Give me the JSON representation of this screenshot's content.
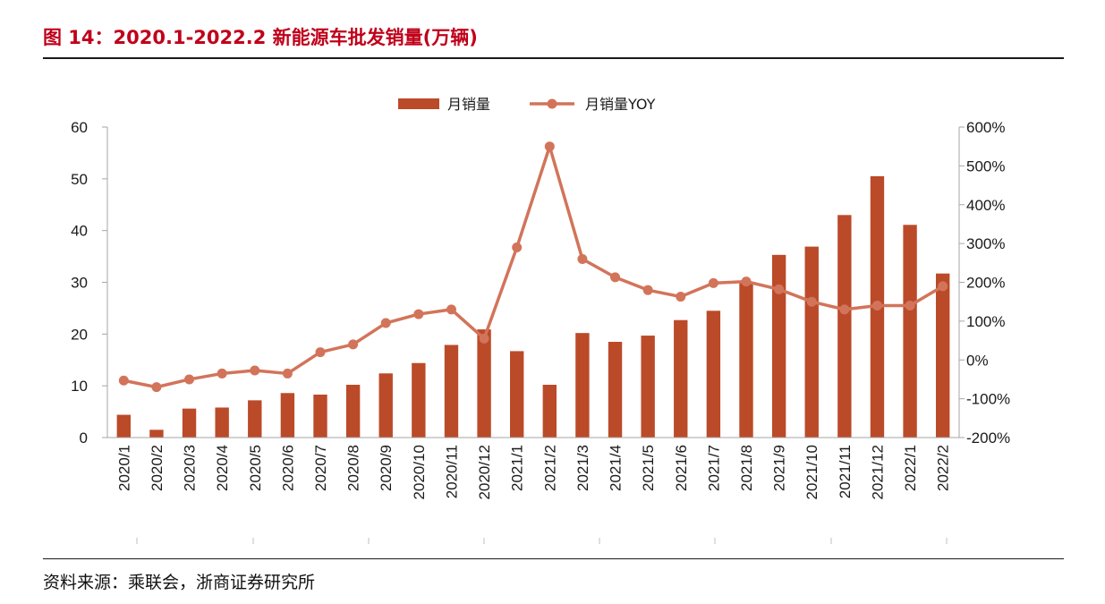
{
  "figure": {
    "title": "图 14：2020.1-2022.2 新能源车批发销量(万辆)",
    "source": "资料来源：乘联会，浙商证券研究所"
  },
  "chart_data": {
    "type": "bar",
    "title": "",
    "xlabel": "",
    "ylabel": "",
    "categories": [
      "2020/1",
      "2020/2",
      "2020/3",
      "2020/4",
      "2020/5",
      "2020/6",
      "2020/7",
      "2020/8",
      "2020/9",
      "2020/10",
      "2020/11",
      "2020/12",
      "2021/1",
      "2021/2",
      "2021/3",
      "2021/4",
      "2021/5",
      "2021/6",
      "2021/7",
      "2021/8",
      "2021/9",
      "2021/10",
      "2021/11",
      "2021/12",
      "2022/1",
      "2022/2"
    ],
    "series": [
      {
        "name": "月销量",
        "type": "bar",
        "axis": "left",
        "color": "#bb4a29",
        "values": [
          4.4,
          1.5,
          5.6,
          5.8,
          7.2,
          8.6,
          8.3,
          10.2,
          12.4,
          14.4,
          17.9,
          20.9,
          16.7,
          10.2,
          20.2,
          18.5,
          19.7,
          22.7,
          24.5,
          30.0,
          35.3,
          36.9,
          43.0,
          50.5,
          41.1,
          31.7
        ]
      },
      {
        "name": "月销量YOY",
        "type": "line",
        "axis": "right",
        "color": "#d2745a",
        "values": [
          -53,
          -70,
          -50,
          -35,
          -27,
          -35,
          20,
          40,
          95,
          118,
          130,
          55,
          290,
          550,
          260,
          213,
          180,
          163,
          198,
          202,
          182,
          150,
          130,
          140,
          140,
          190
        ]
      }
    ],
    "y_left": {
      "range": [
        0,
        60
      ],
      "ticks": [
        "0",
        "10",
        "20",
        "30",
        "40",
        "50",
        "60"
      ]
    },
    "y_right": {
      "range": [
        -200,
        600
      ],
      "ticks": [
        "-200%",
        "-100%",
        "0%",
        "100%",
        "200%",
        "300%",
        "400%",
        "500%",
        "600%"
      ]
    },
    "legend_position": "top",
    "grid": false
  }
}
